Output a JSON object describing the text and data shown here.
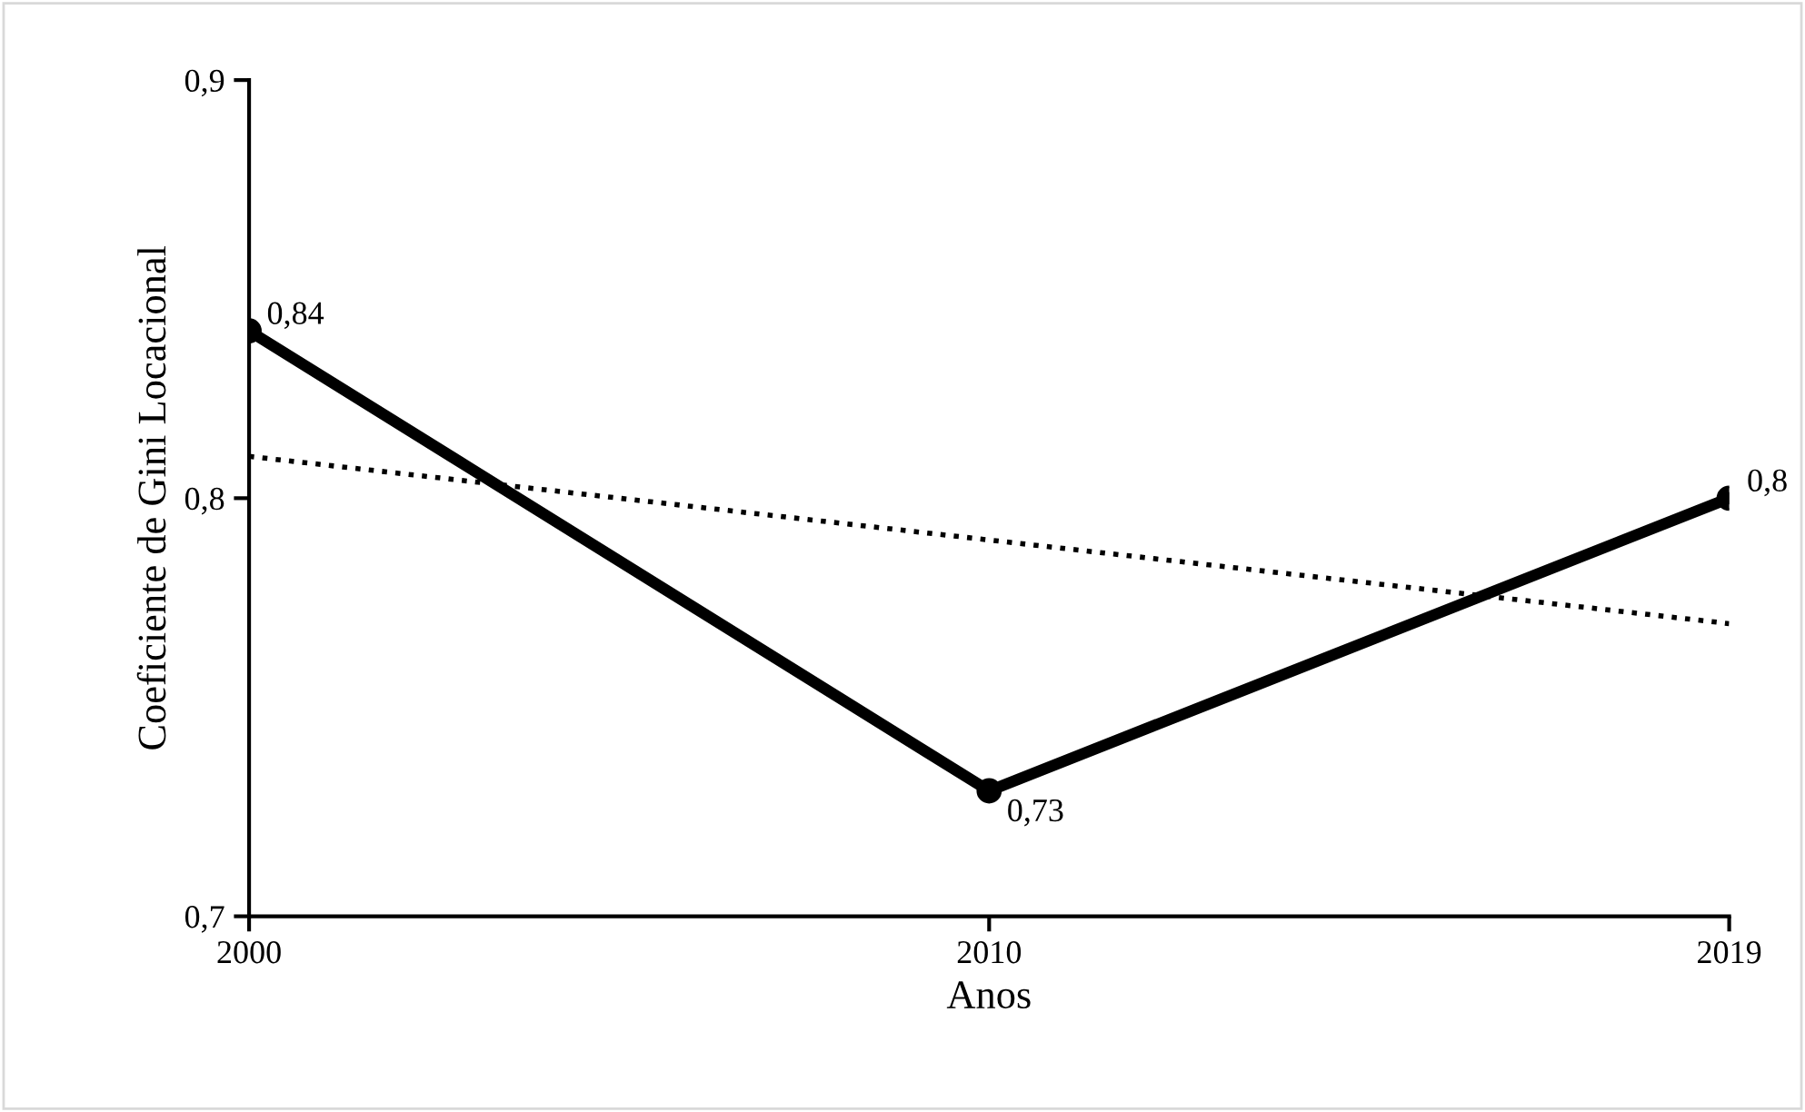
{
  "chart_data": {
    "type": "line",
    "xlabel": "Anos",
    "ylabel": "Coeficiente de Gini Locacional",
    "categories": [
      "2000",
      "2010",
      "2019"
    ],
    "series": [
      {
        "color": "#000000",
        "values": [
          0.84,
          0.73,
          0.8
        ],
        "value_labels": [
          "0,84",
          "0,73",
          "0,8"
        ],
        "marker": "circle",
        "line_style": "solid"
      },
      {
        "type": "line",
        "color": "#000000",
        "values": [
          0.81,
          0.79,
          0.77
        ],
        "marker": "none",
        "line_style": "dotted"
      }
    ],
    "ylim": [
      0.7,
      0.9
    ],
    "yticks": [
      {
        "value": 0.7,
        "label": "0,7"
      },
      {
        "value": 0.8,
        "label": "0,8"
      },
      {
        "value": 0.9,
        "label": "0,9"
      }
    ],
    "grid": false,
    "legend": false
  }
}
